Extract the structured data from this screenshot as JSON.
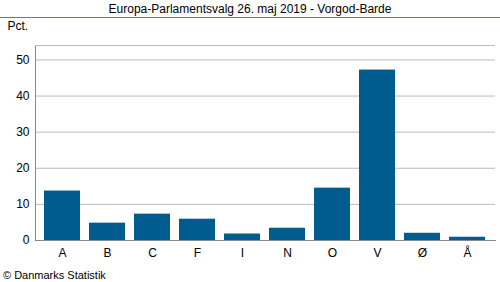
{
  "chart_data": {
    "type": "bar",
    "title": "Europa-Parlamentsvalg 26. maj 2019 - Vorgod-Barde",
    "y_label": "Pct.",
    "caption": "© Danmarks Statistik",
    "categories": [
      "A",
      "B",
      "C",
      "F",
      "I",
      "N",
      "O",
      "V",
      "Ø",
      "Å"
    ],
    "values": [
      13.7,
      4.8,
      7.3,
      5.9,
      1.8,
      3.4,
      14.5,
      47.2,
      2.0,
      0.9
    ],
    "color": "#005b8f",
    "ylim": [
      0,
      54
    ],
    "yticks": [
      0,
      10,
      20,
      30,
      40,
      50
    ],
    "grid": true
  }
}
